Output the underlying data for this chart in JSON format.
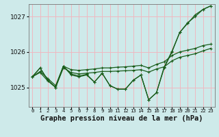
{
  "title": "Graphe pression niveau de la mer (hPa)",
  "background_color": "#ceeaea",
  "grid_color": "#f0b8c0",
  "line_color": "#1a5c1a",
  "ylim": [
    1024.45,
    1027.35
  ],
  "yticks": [
    1025,
    1026,
    1027
  ],
  "xlim": [
    -0.5,
    23.5
  ],
  "series": [
    [
      1025.3,
      1025.55,
      1025.2,
      1025.0,
      1025.6,
      1025.35,
      1025.3,
      1025.35,
      1025.15,
      1025.4,
      1025.05,
      1024.95,
      1024.95,
      1025.2,
      1025.35,
      1024.65,
      1024.85,
      1025.55,
      1026.0,
      1026.55,
      1026.8,
      1027.05,
      1027.2,
      1027.3
    ],
    [
      1025.3,
      1025.55,
      1025.2,
      1025.0,
      1025.6,
      1025.38,
      1025.32,
      1025.37,
      1025.15,
      1025.4,
      1025.05,
      1024.95,
      1024.95,
      1025.2,
      1025.35,
      1024.65,
      1024.85,
      1025.58,
      1026.02,
      1026.55,
      1026.82,
      1027.0,
      1027.2,
      1027.3
    ],
    [
      1025.3,
      1025.45,
      1025.25,
      1025.05,
      1025.6,
      1025.5,
      1025.48,
      1025.5,
      1025.52,
      1025.55,
      1025.55,
      1025.57,
      1025.58,
      1025.6,
      1025.62,
      1025.55,
      1025.65,
      1025.72,
      1025.9,
      1026.0,
      1026.05,
      1026.1,
      1026.18,
      1026.22
    ],
    [
      1025.3,
      1025.42,
      1025.18,
      1025.0,
      1025.55,
      1025.42,
      1025.38,
      1025.4,
      1025.42,
      1025.45,
      1025.45,
      1025.46,
      1025.47,
      1025.48,
      1025.5,
      1025.43,
      1025.52,
      1025.58,
      1025.75,
      1025.85,
      1025.9,
      1025.95,
      1026.03,
      1026.1
    ]
  ],
  "title_fontsize": 7.5,
  "ytick_fontsize": 6.5,
  "xtick_fontsize": 5.2
}
